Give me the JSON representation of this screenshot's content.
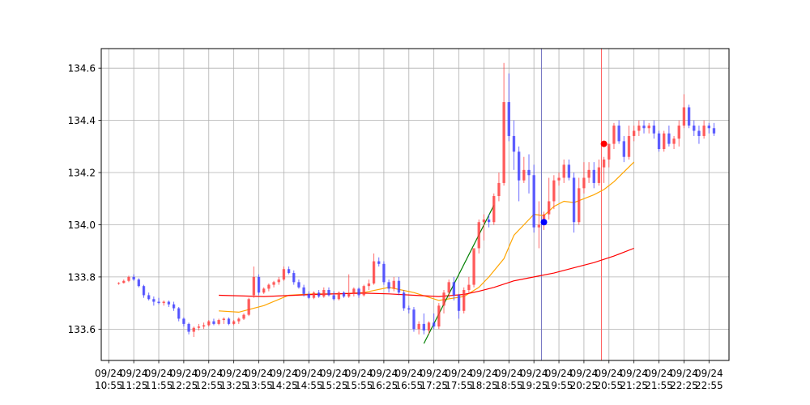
{
  "chart_data": {
    "type": "candlestick",
    "title": "",
    "xlabel": "",
    "ylabel": "",
    "grid": true,
    "ylim": [
      133.48,
      134.675
    ],
    "y_ticks": [
      "133.6",
      "133.8",
      "134.0",
      "134.2",
      "134.4",
      "134.6"
    ],
    "x_ticks": [
      "09/24\n10:55",
      "09/24\n11:25",
      "09/24\n11:55",
      "09/24\n12:25",
      "09/24\n12:55",
      "09/24\n13:25",
      "09/24\n13:55",
      "09/24\n14:25",
      "09/24\n14:55",
      "09/24\n15:25",
      "09/24\n15:55",
      "09/24\n16:25",
      "09/24\n16:55",
      "09/24\n17:25",
      "09/24\n17:55",
      "09/24\n18:25",
      "09/24\n18:55",
      "09/24\n19:25",
      "09/24\n19:55",
      "09/24\n20:25",
      "09/24\n20:55",
      "09/24\n21:25",
      "09/24\n21:55",
      "09/24\n22:25",
      "09/24\n22:55"
    ],
    "colors": {
      "up": "#ff3b3b",
      "down": "#3b3bff",
      "ma_short": "orange",
      "ma_long": "red",
      "trend": "green",
      "vline_blue": "#7070c0",
      "vline_red": "#ff6060"
    },
    "candles": [
      {
        "t": 1,
        "o": 133.775,
        "h": 133.78,
        "l": 133.77,
        "c": 133.777
      },
      {
        "t": 2,
        "o": 133.777,
        "h": 133.79,
        "l": 133.775,
        "c": 133.785
      },
      {
        "t": 3,
        "o": 133.785,
        "h": 133.805,
        "l": 133.78,
        "c": 133.8
      },
      {
        "t": 4,
        "o": 133.8,
        "h": 133.81,
        "l": 133.785,
        "c": 133.79
      },
      {
        "t": 5,
        "o": 133.79,
        "h": 133.795,
        "l": 133.76,
        "c": 133.765
      },
      {
        "t": 6,
        "o": 133.765,
        "h": 133.77,
        "l": 133.72,
        "c": 133.73
      },
      {
        "t": 7,
        "o": 133.73,
        "h": 133.74,
        "l": 133.71,
        "c": 133.715
      },
      {
        "t": 8,
        "o": 133.715,
        "h": 133.725,
        "l": 133.69,
        "c": 133.705
      },
      {
        "t": 9,
        "o": 133.705,
        "h": 133.72,
        "l": 133.695,
        "c": 133.7
      },
      {
        "t": 10,
        "o": 133.7,
        "h": 133.71,
        "l": 133.69,
        "c": 133.705
      },
      {
        "t": 11,
        "o": 133.705,
        "h": 133.71,
        "l": 133.685,
        "c": 133.695
      },
      {
        "t": 12,
        "o": 133.695,
        "h": 133.705,
        "l": 133.67,
        "c": 133.68
      },
      {
        "t": 13,
        "o": 133.68,
        "h": 133.685,
        "l": 133.63,
        "c": 133.64
      },
      {
        "t": 14,
        "o": 133.64,
        "h": 133.645,
        "l": 133.61,
        "c": 133.62
      },
      {
        "t": 15,
        "o": 133.62,
        "h": 133.625,
        "l": 133.58,
        "c": 133.59
      },
      {
        "t": 16,
        "o": 133.59,
        "h": 133.61,
        "l": 133.57,
        "c": 133.605
      },
      {
        "t": 17,
        "o": 133.605,
        "h": 133.62,
        "l": 133.595,
        "c": 133.61
      },
      {
        "t": 18,
        "o": 133.61,
        "h": 133.625,
        "l": 133.6,
        "c": 133.615
      },
      {
        "t": 19,
        "o": 133.615,
        "h": 133.635,
        "l": 133.61,
        "c": 133.63
      },
      {
        "t": 20,
        "o": 133.63,
        "h": 133.64,
        "l": 133.615,
        "c": 133.62
      },
      {
        "t": 21,
        "o": 133.62,
        "h": 133.64,
        "l": 133.615,
        "c": 133.635
      },
      {
        "t": 22,
        "o": 133.635,
        "h": 133.645,
        "l": 133.62,
        "c": 133.64
      },
      {
        "t": 23,
        "o": 133.64,
        "h": 133.645,
        "l": 133.615,
        "c": 133.62
      },
      {
        "t": 24,
        "o": 133.62,
        "h": 133.635,
        "l": 133.615,
        "c": 133.63
      },
      {
        "t": 25,
        "o": 133.63,
        "h": 133.645,
        "l": 133.62,
        "c": 133.64
      },
      {
        "t": 26,
        "o": 133.64,
        "h": 133.66,
        "l": 133.635,
        "c": 133.655
      },
      {
        "t": 27,
        "o": 133.655,
        "h": 133.72,
        "l": 133.65,
        "c": 133.715
      },
      {
        "t": 28,
        "o": 133.73,
        "h": 133.84,
        "l": 133.72,
        "c": 133.8
      },
      {
        "t": 29,
        "o": 133.8,
        "h": 133.81,
        "l": 133.73,
        "c": 133.74
      },
      {
        "t": 30,
        "o": 133.74,
        "h": 133.76,
        "l": 133.735,
        "c": 133.755
      },
      {
        "t": 31,
        "o": 133.755,
        "h": 133.775,
        "l": 133.745,
        "c": 133.77
      },
      {
        "t": 32,
        "o": 133.77,
        "h": 133.785,
        "l": 133.76,
        "c": 133.78
      },
      {
        "t": 33,
        "o": 133.78,
        "h": 133.8,
        "l": 133.77,
        "c": 133.79
      },
      {
        "t": 34,
        "o": 133.79,
        "h": 133.84,
        "l": 133.785,
        "c": 133.83
      },
      {
        "t": 35,
        "o": 133.83,
        "h": 133.84,
        "l": 133.81,
        "c": 133.815
      },
      {
        "t": 36,
        "o": 133.815,
        "h": 133.825,
        "l": 133.77,
        "c": 133.78
      },
      {
        "t": 37,
        "o": 133.78,
        "h": 133.79,
        "l": 133.755,
        "c": 133.76
      },
      {
        "t": 38,
        "o": 133.76,
        "h": 133.77,
        "l": 133.725,
        "c": 133.735
      },
      {
        "t": 39,
        "o": 133.735,
        "h": 133.745,
        "l": 133.715,
        "c": 133.72
      },
      {
        "t": 40,
        "o": 133.72,
        "h": 133.745,
        "l": 133.715,
        "c": 133.74
      },
      {
        "t": 41,
        "o": 133.74,
        "h": 133.75,
        "l": 133.72,
        "c": 133.725
      },
      {
        "t": 42,
        "o": 133.725,
        "h": 133.76,
        "l": 133.72,
        "c": 133.75
      },
      {
        "t": 43,
        "o": 133.75,
        "h": 133.76,
        "l": 133.725,
        "c": 133.73
      },
      {
        "t": 44,
        "o": 133.73,
        "h": 133.745,
        "l": 133.71,
        "c": 133.715
      },
      {
        "t": 45,
        "o": 133.715,
        "h": 133.745,
        "l": 133.71,
        "c": 133.74
      },
      {
        "t": 46,
        "o": 133.74,
        "h": 133.745,
        "l": 133.72,
        "c": 133.725
      },
      {
        "t": 47,
        "o": 133.725,
        "h": 133.81,
        "l": 133.72,
        "c": 133.735
      },
      {
        "t": 48,
        "o": 133.735,
        "h": 133.76,
        "l": 133.725,
        "c": 133.755
      },
      {
        "t": 49,
        "o": 133.755,
        "h": 133.76,
        "l": 133.72,
        "c": 133.73
      },
      {
        "t": 50,
        "o": 133.73,
        "h": 133.77,
        "l": 133.725,
        "c": 133.765
      },
      {
        "t": 51,
        "o": 133.765,
        "h": 133.79,
        "l": 133.75,
        "c": 133.775
      },
      {
        "t": 52,
        "o": 133.775,
        "h": 133.89,
        "l": 133.77,
        "c": 133.86
      },
      {
        "t": 53,
        "o": 133.86,
        "h": 133.875,
        "l": 133.84,
        "c": 133.85
      },
      {
        "t": 54,
        "o": 133.85,
        "h": 133.86,
        "l": 133.77,
        "c": 133.78
      },
      {
        "t": 55,
        "o": 133.78,
        "h": 133.79,
        "l": 133.74,
        "c": 133.755
      },
      {
        "t": 56,
        "o": 133.755,
        "h": 133.8,
        "l": 133.745,
        "c": 133.785
      },
      {
        "t": 57,
        "o": 133.785,
        "h": 133.8,
        "l": 133.73,
        "c": 133.74
      },
      {
        "t": 58,
        "o": 133.74,
        "h": 133.75,
        "l": 133.67,
        "c": 133.68
      },
      {
        "t": 59,
        "o": 133.68,
        "h": 133.69,
        "l": 133.66,
        "c": 133.675
      },
      {
        "t": 60,
        "o": 133.675,
        "h": 133.685,
        "l": 133.59,
        "c": 133.6
      },
      {
        "t": 61,
        "o": 133.6,
        "h": 133.63,
        "l": 133.58,
        "c": 133.62
      },
      {
        "t": 62,
        "o": 133.62,
        "h": 133.66,
        "l": 133.58,
        "c": 133.595
      },
      {
        "t": 63,
        "o": 133.595,
        "h": 133.63,
        "l": 133.58,
        "c": 133.625
      },
      {
        "t": 64,
        "o": 133.625,
        "h": 133.66,
        "l": 133.6,
        "c": 133.61
      },
      {
        "t": 65,
        "o": 133.61,
        "h": 133.7,
        "l": 133.6,
        "c": 133.69
      },
      {
        "t": 66,
        "o": 133.69,
        "h": 133.75,
        "l": 133.66,
        "c": 133.74
      },
      {
        "t": 67,
        "o": 133.74,
        "h": 133.79,
        "l": 133.72,
        "c": 133.78
      },
      {
        "t": 68,
        "o": 133.78,
        "h": 133.8,
        "l": 133.71,
        "c": 133.73
      },
      {
        "t": 69,
        "o": 133.73,
        "h": 133.735,
        "l": 133.64,
        "c": 133.67
      },
      {
        "t": 70,
        "o": 133.67,
        "h": 133.76,
        "l": 133.66,
        "c": 133.75
      },
      {
        "t": 71,
        "o": 133.75,
        "h": 133.8,
        "l": 133.74,
        "c": 133.77
      },
      {
        "t": 72,
        "o": 133.77,
        "h": 133.9,
        "l": 133.76,
        "c": 133.91
      },
      {
        "t": 73,
        "o": 133.91,
        "h": 134.02,
        "l": 133.89,
        "c": 134.01
      },
      {
        "t": 74,
        "o": 134.01,
        "h": 134.04,
        "l": 133.94,
        "c": 134.02
      },
      {
        "t": 75,
        "o": 134.02,
        "h": 134.04,
        "l": 133.99,
        "c": 134.01
      },
      {
        "t": 76,
        "o": 134.01,
        "h": 134.12,
        "l": 134.0,
        "c": 134.11
      },
      {
        "t": 77,
        "o": 134.11,
        "h": 134.2,
        "l": 134.09,
        "c": 134.16
      },
      {
        "t": 78,
        "o": 134.16,
        "h": 134.62,
        "l": 134.15,
        "c": 134.47
      },
      {
        "t": 79,
        "o": 134.47,
        "h": 134.58,
        "l": 134.32,
        "c": 134.34
      },
      {
        "t": 80,
        "o": 134.34,
        "h": 134.4,
        "l": 134.21,
        "c": 134.28
      },
      {
        "t": 81,
        "o": 134.28,
        "h": 134.3,
        "l": 134.09,
        "c": 134.17
      },
      {
        "t": 82,
        "o": 134.17,
        "h": 134.26,
        "l": 134.16,
        "c": 134.21
      },
      {
        "t": 83,
        "o": 134.21,
        "h": 134.27,
        "l": 134.12,
        "c": 134.19
      },
      {
        "t": 84,
        "o": 134.19,
        "h": 134.23,
        "l": 133.97,
        "c": 133.99
      },
      {
        "t": 85,
        "o": 133.99,
        "h": 134.09,
        "l": 133.91,
        "c": 134.0
      },
      {
        "t": 86,
        "o": 134.0,
        "h": 134.05,
        "l": 133.98,
        "c": 134.04
      },
      {
        "t": 87,
        "o": 134.04,
        "h": 134.18,
        "l": 134.02,
        "c": 134.09
      },
      {
        "t": 88,
        "o": 134.09,
        "h": 134.19,
        "l": 134.06,
        "c": 134.17
      },
      {
        "t": 89,
        "o": 134.17,
        "h": 134.2,
        "l": 134.15,
        "c": 134.18
      },
      {
        "t": 90,
        "o": 134.18,
        "h": 134.25,
        "l": 134.16,
        "c": 134.23
      },
      {
        "t": 91,
        "o": 134.23,
        "h": 134.25,
        "l": 134.17,
        "c": 134.18
      },
      {
        "t": 92,
        "o": 134.18,
        "h": 134.2,
        "l": 133.97,
        "c": 134.01
      },
      {
        "t": 93,
        "o": 134.01,
        "h": 134.18,
        "l": 134.0,
        "c": 134.14
      },
      {
        "t": 94,
        "o": 134.14,
        "h": 134.24,
        "l": 134.12,
        "c": 134.18
      },
      {
        "t": 95,
        "o": 134.18,
        "h": 134.24,
        "l": 134.16,
        "c": 134.21
      },
      {
        "t": 96,
        "o": 134.21,
        "h": 134.24,
        "l": 134.14,
        "c": 134.16
      },
      {
        "t": 97,
        "o": 134.16,
        "h": 134.25,
        "l": 134.15,
        "c": 134.22
      },
      {
        "t": 98,
        "o": 134.22,
        "h": 134.26,
        "l": 134.16,
        "c": 134.25
      },
      {
        "t": 99,
        "o": 134.25,
        "h": 134.3,
        "l": 134.22,
        "c": 134.31
      },
      {
        "t": 100,
        "o": 134.31,
        "h": 134.39,
        "l": 134.29,
        "c": 134.38
      },
      {
        "t": 101,
        "o": 134.38,
        "h": 134.4,
        "l": 134.31,
        "c": 134.32
      },
      {
        "t": 102,
        "o": 134.32,
        "h": 134.34,
        "l": 134.24,
        "c": 134.26
      },
      {
        "t": 103,
        "o": 134.26,
        "h": 134.38,
        "l": 134.25,
        "c": 134.34
      },
      {
        "t": 104,
        "o": 134.34,
        "h": 134.38,
        "l": 134.32,
        "c": 134.36
      },
      {
        "t": 105,
        "o": 134.36,
        "h": 134.4,
        "l": 134.34,
        "c": 134.38
      },
      {
        "t": 106,
        "o": 134.38,
        "h": 134.4,
        "l": 134.35,
        "c": 134.37
      },
      {
        "t": 107,
        "o": 134.37,
        "h": 134.39,
        "l": 134.35,
        "c": 134.38
      },
      {
        "t": 108,
        "o": 134.38,
        "h": 134.4,
        "l": 134.33,
        "c": 134.35
      },
      {
        "t": 109,
        "o": 134.35,
        "h": 134.36,
        "l": 134.28,
        "c": 134.29
      },
      {
        "t": 110,
        "o": 134.29,
        "h": 134.36,
        "l": 134.28,
        "c": 134.35
      },
      {
        "t": 111,
        "o": 134.35,
        "h": 134.38,
        "l": 134.3,
        "c": 134.31
      },
      {
        "t": 112,
        "o": 134.31,
        "h": 134.34,
        "l": 134.29,
        "c": 134.33
      },
      {
        "t": 113,
        "o": 134.33,
        "h": 134.4,
        "l": 134.3,
        "c": 134.38
      },
      {
        "t": 114,
        "o": 134.38,
        "h": 134.5,
        "l": 134.37,
        "c": 134.45
      },
      {
        "t": 115,
        "o": 134.45,
        "h": 134.46,
        "l": 134.37,
        "c": 134.38
      },
      {
        "t": 116,
        "o": 134.38,
        "h": 134.4,
        "l": 134.34,
        "c": 134.36
      },
      {
        "t": 117,
        "o": 134.36,
        "h": 134.38,
        "l": 134.31,
        "c": 134.34
      },
      {
        "t": 118,
        "o": 134.34,
        "h": 134.4,
        "l": 134.33,
        "c": 134.38
      },
      {
        "t": 119,
        "o": 134.38,
        "h": 134.39,
        "l": 134.35,
        "c": 134.37
      },
      {
        "t": 120,
        "o": 134.37,
        "h": 134.39,
        "l": 134.34,
        "c": 134.35
      }
    ],
    "series": [
      {
        "type": "line",
        "color": "orange",
        "x": [
          21,
          25,
          30,
          35,
          40,
          45,
          50,
          55,
          60,
          65,
          70,
          73,
          75,
          78,
          80,
          82,
          84,
          86,
          88,
          90,
          92,
          94,
          96,
          98,
          100,
          104
        ],
        "y": [
          133.67,
          133.665,
          133.69,
          133.73,
          133.735,
          133.735,
          133.74,
          133.76,
          133.74,
          133.71,
          133.725,
          133.76,
          133.8,
          133.87,
          133.96,
          134.0,
          134.04,
          134.035,
          134.07,
          134.09,
          134.085,
          134.1,
          134.115,
          134.135,
          134.165,
          134.24
        ]
      },
      {
        "type": "line",
        "color": "red",
        "x": [
          21,
          30,
          40,
          50,
          55,
          60,
          65,
          70,
          73,
          76,
          80,
          84,
          88,
          92,
          96,
          100,
          104
        ],
        "y": [
          133.73,
          133.725,
          133.733,
          133.738,
          133.735,
          133.73,
          133.725,
          133.733,
          133.745,
          133.76,
          133.785,
          133.8,
          133.815,
          133.835,
          133.855,
          133.88,
          133.91
        ]
      },
      {
        "type": "line",
        "color": "green",
        "x": [
          62,
          76
        ],
        "y": [
          133.545,
          134.075
        ]
      }
    ],
    "markers": [
      {
        "x": 86,
        "y": 134.01,
        "color": "blue"
      },
      {
        "x": 98,
        "y": 134.31,
        "color": "red"
      }
    ],
    "vlines": [
      {
        "x": 85.5,
        "color": "#7070c0"
      },
      {
        "x": 97.5,
        "color": "#ff6060"
      }
    ],
    "x_tick_positions": [
      -1,
      4,
      9,
      14,
      19,
      24,
      29,
      34,
      39,
      44,
      49,
      54,
      59,
      64,
      69,
      74,
      79,
      84,
      89,
      94,
      99,
      104,
      109,
      114,
      119
    ],
    "xlim": [
      -2.5,
      123
    ]
  }
}
